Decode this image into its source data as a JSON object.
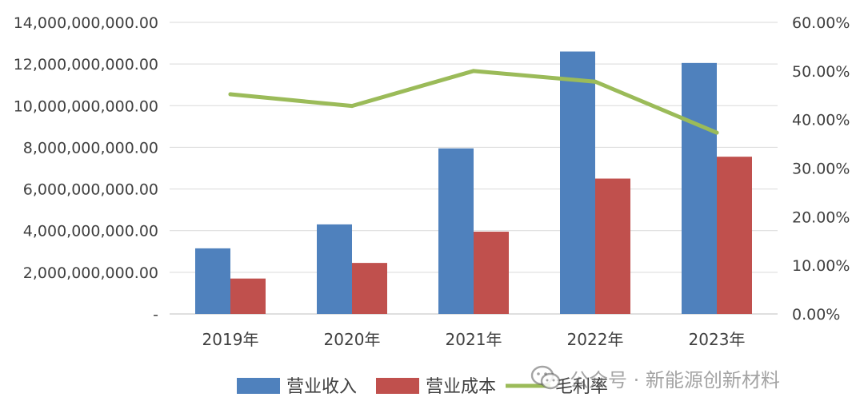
{
  "chart_data": {
    "type": "bar",
    "categories": [
      "2019年",
      "2020年",
      "2021年",
      "2022年",
      "2023年"
    ],
    "series": [
      {
        "name": "营业收入",
        "type": "bar",
        "axis": "left",
        "color": "#4F81BD",
        "values": [
          3150000000,
          4300000000,
          7950000000,
          12600000000,
          12050000000
        ]
      },
      {
        "name": "营业成本",
        "type": "bar",
        "axis": "left",
        "color": "#C0504D",
        "values": [
          1700000000,
          2450000000,
          3950000000,
          6500000000,
          7550000000
        ]
      },
      {
        "name": "毛利率",
        "type": "line",
        "axis": "right",
        "color": "#9BBB59",
        "values": [
          45.2,
          42.8,
          50.0,
          47.8,
          37.3
        ]
      }
    ],
    "y_left": {
      "min": 0,
      "max": 14000000000,
      "ticks": [
        {
          "value": 0,
          "label": "-"
        },
        {
          "value": 2000000000,
          "label": "2,000,000,000.00"
        },
        {
          "value": 4000000000,
          "label": "4,000,000,000.00"
        },
        {
          "value": 6000000000,
          "label": "6,000,000,000.00"
        },
        {
          "value": 8000000000,
          "label": "8,000,000,000.00"
        },
        {
          "value": 10000000000,
          "label": "10,000,000,000.00"
        },
        {
          "value": 12000000000,
          "label": "12,000,000,000.00"
        },
        {
          "value": 14000000000,
          "label": "14,000,000,000.00"
        }
      ]
    },
    "y_right": {
      "min": 0,
      "max": 60,
      "ticks": [
        {
          "value": 0,
          "label": "0.00%"
        },
        {
          "value": 10,
          "label": "10.00%"
        },
        {
          "value": 20,
          "label": "20.00%"
        },
        {
          "value": 30,
          "label": "30.00%"
        },
        {
          "value": 40,
          "label": "40.00%"
        },
        {
          "value": 50,
          "label": "50.00%"
        },
        {
          "value": 60,
          "label": "60.00%"
        }
      ]
    },
    "grid": true,
    "legend_position": "bottom"
  },
  "watermark": {
    "text": "公众号 · 新能源创新材料",
    "icon": "wechat-icon"
  }
}
